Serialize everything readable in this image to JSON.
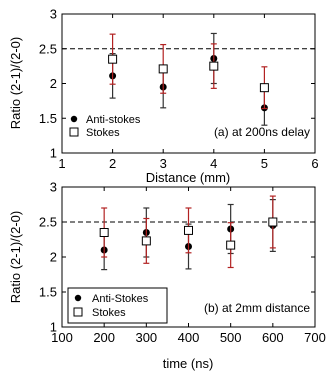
{
  "chart_data": [
    {
      "type": "scatter",
      "title": "",
      "xlabel": "Distance (mm)",
      "ylabel": "Ratio  (2-1)/(2-0)",
      "xlim": [
        1,
        6
      ],
      "ylim": [
        1,
        3
      ],
      "xticks": [
        "1",
        "2",
        "3",
        "4",
        "5",
        "6"
      ],
      "yticks": [
        "1",
        "1.5",
        "2",
        "2.5",
        "3"
      ],
      "reference_line": 2.5,
      "annotation": "(a) at 200ns delay",
      "legend_position": "lower-left",
      "series": [
        {
          "name": "Anti-stokes",
          "marker": "filled-circle",
          "error_color": "#333333",
          "x": [
            2,
            3,
            4,
            5
          ],
          "y": [
            2.11,
            1.95,
            2.36,
            1.65
          ],
          "err": [
            0.32,
            0.3,
            0.36,
            0.25
          ]
        },
        {
          "name": "Stokes",
          "marker": "open-square",
          "error_color": "#b22222",
          "x": [
            2,
            3,
            4,
            5
          ],
          "y": [
            2.35,
            2.21,
            2.25,
            1.94
          ],
          "err": [
            0.36,
            0.35,
            0.32,
            0.3
          ]
        }
      ]
    },
    {
      "type": "scatter",
      "title": "",
      "xlabel": "time (ns)",
      "ylabel": "Ratio  (2-1)/(2-0)",
      "xlim": [
        100,
        700
      ],
      "ylim": [
        1,
        3
      ],
      "xticks": [
        "100",
        "200",
        "300",
        "400",
        "500",
        "600",
        "700"
      ],
      "yticks": [
        "1",
        "1.5",
        "2",
        "2.5",
        "3"
      ],
      "reference_line": 2.5,
      "annotation": "(b) at 2mm distance",
      "legend_position": "lower-left",
      "series": [
        {
          "name": "Anti-Stokes",
          "marker": "filled-circle",
          "error_color": "#333333",
          "x": [
            200,
            300,
            400,
            500,
            600
          ],
          "y": [
            2.1,
            2.35,
            2.15,
            2.4,
            2.45
          ],
          "err": [
            0.28,
            0.35,
            0.32,
            0.35,
            0.37
          ]
        },
        {
          "name": "Stokes",
          "marker": "open-square",
          "error_color": "#b22222",
          "x": [
            200,
            300,
            400,
            500,
            600
          ],
          "y": [
            2.35,
            2.23,
            2.38,
            2.17,
            2.5
          ],
          "err": [
            0.35,
            0.32,
            0.32,
            0.32,
            0.37
          ]
        }
      ]
    }
  ]
}
